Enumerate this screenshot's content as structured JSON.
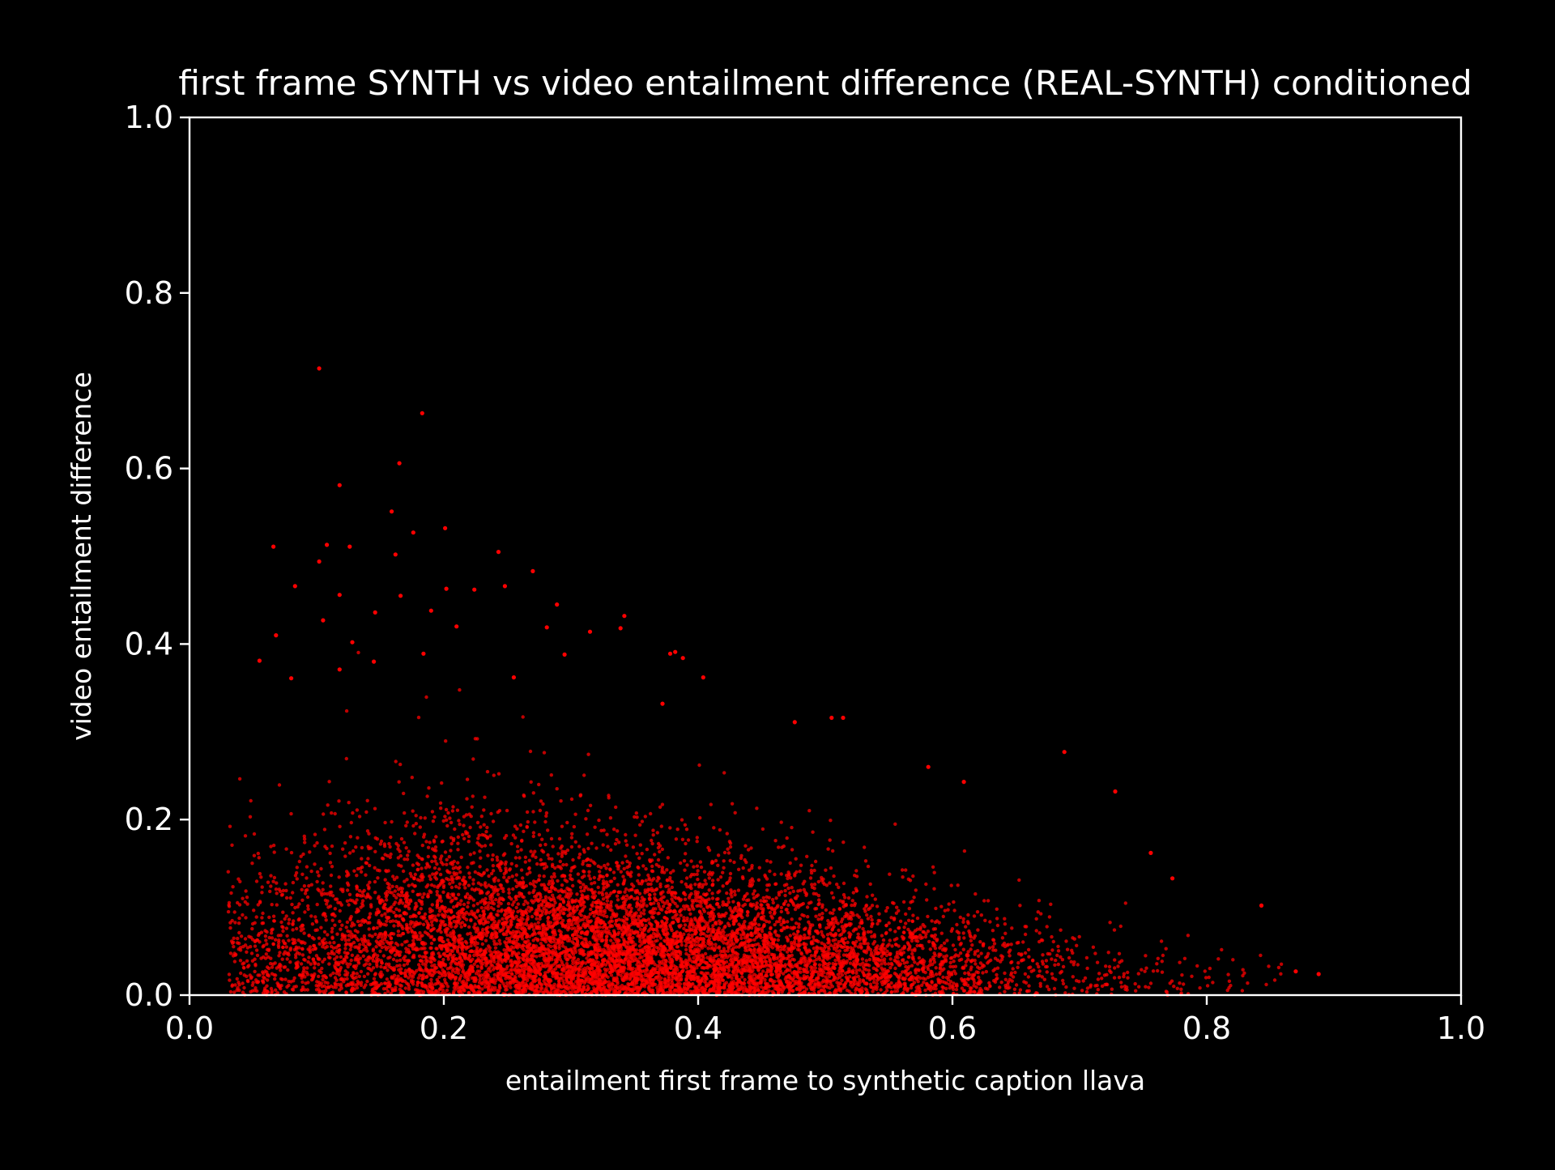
{
  "chart_data": {
    "type": "scatter",
    "title": "first frame SYNTH vs video entailment difference (REAL-SYNTH) conditioned",
    "xlabel": "entailment first frame to synthetic caption llava",
    "ylabel": "video entailment difference",
    "xlim": [
      0.0,
      1.0
    ],
    "ylim": [
      0.0,
      1.0
    ],
    "xticks": [
      "0.0",
      "0.2",
      "0.4",
      "0.6",
      "0.8",
      "1.0"
    ],
    "yticks": [
      "0.0",
      "0.2",
      "0.4",
      "0.6",
      "0.8",
      "1.0"
    ],
    "grid": false,
    "legend": "none",
    "colors": {
      "background": "#000000",
      "axes": "#ffffff",
      "points": "#ff0000"
    },
    "series": [
      {
        "density_description": "dense cloud of several thousand points concentrated near y=0 across x 0.05-0.8, peaking around x 0.3-0.45",
        "points": [
          [
            0.102,
            0.714
          ],
          [
            0.183,
            0.663
          ],
          [
            0.165,
            0.606
          ],
          [
            0.118,
            0.581
          ],
          [
            0.159,
            0.551
          ],
          [
            0.201,
            0.532
          ],
          [
            0.066,
            0.511
          ],
          [
            0.108,
            0.513
          ],
          [
            0.126,
            0.511
          ],
          [
            0.243,
            0.505
          ],
          [
            0.162,
            0.502
          ],
          [
            0.102,
            0.494
          ],
          [
            0.176,
            0.527
          ],
          [
            0.27,
            0.483
          ],
          [
            0.083,
            0.466
          ],
          [
            0.224,
            0.462
          ],
          [
            0.202,
            0.463
          ],
          [
            0.248,
            0.466
          ],
          [
            0.118,
            0.456
          ],
          [
            0.289,
            0.445
          ],
          [
            0.166,
            0.455
          ],
          [
            0.19,
            0.438
          ],
          [
            0.342,
            0.432
          ],
          [
            0.21,
            0.42
          ],
          [
            0.146,
            0.436
          ],
          [
            0.105,
            0.427
          ],
          [
            0.068,
            0.41
          ],
          [
            0.281,
            0.419
          ],
          [
            0.315,
            0.414
          ],
          [
            0.339,
            0.418
          ],
          [
            0.128,
            0.402
          ],
          [
            0.378,
            0.389
          ],
          [
            0.382,
            0.391
          ],
          [
            0.388,
            0.384
          ],
          [
            0.055,
            0.381
          ],
          [
            0.295,
            0.388
          ],
          [
            0.184,
            0.389
          ],
          [
            0.145,
            0.38
          ],
          [
            0.118,
            0.371
          ],
          [
            0.404,
            0.362
          ],
          [
            0.255,
            0.362
          ],
          [
            0.08,
            0.361
          ],
          [
            0.372,
            0.332
          ],
          [
            0.476,
            0.311
          ],
          [
            0.505,
            0.316
          ],
          [
            0.514,
            0.316
          ],
          [
            0.581,
            0.26
          ],
          [
            0.609,
            0.243
          ],
          [
            0.688,
            0.277
          ],
          [
            0.728,
            0.232
          ],
          [
            0.843,
            0.102
          ],
          [
            0.87,
            0.027
          ],
          [
            0.888,
            0.024
          ],
          [
            0.756,
            0.162
          ],
          [
            0.773,
            0.133
          ]
        ]
      }
    ]
  }
}
